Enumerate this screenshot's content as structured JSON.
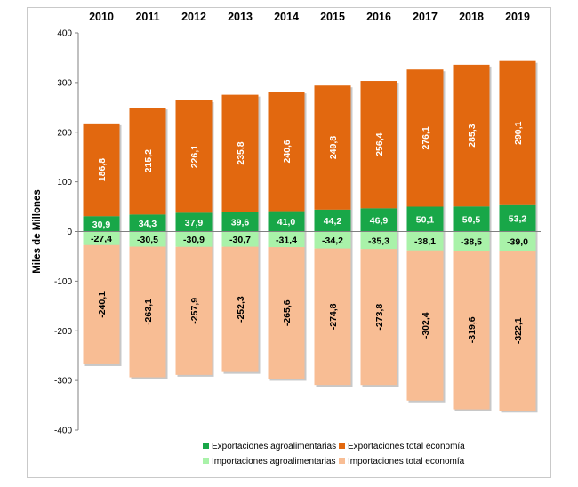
{
  "chart_data": {
    "type": "bar",
    "stacked": true,
    "categories": [
      "2010",
      "2011",
      "2012",
      "2013",
      "2014",
      "2015",
      "2016",
      "2017",
      "2018",
      "2019"
    ],
    "series": [
      {
        "name": "Exportaciones agroalimentarias",
        "color": "#18a748",
        "values": [
          30.9,
          34.3,
          37.9,
          39.6,
          41.0,
          44.2,
          46.9,
          50.1,
          50.5,
          53.2
        ],
        "labels": [
          "30,9",
          "34,3",
          "37,9",
          "39,6",
          "41,0",
          "44,2",
          "46,9",
          "50,1",
          "50,5",
          "53,2"
        ]
      },
      {
        "name": "Exportaciones total economía",
        "color": "#e2680f",
        "values": [
          186.8,
          215.2,
          226.1,
          235.8,
          240.6,
          249.8,
          256.4,
          276.1,
          285.3,
          290.1
        ],
        "labels": [
          "186,8",
          "215,2",
          "226,1",
          "235,8",
          "240,6",
          "249,8",
          "256,4",
          "276,1",
          "285,3",
          "290,1"
        ]
      },
      {
        "name": "Importaciones agroalimentarias",
        "color": "#a9f2a9",
        "values": [
          -27.4,
          -30.5,
          -30.9,
          -30.7,
          -31.4,
          -34.2,
          -35.3,
          -38.1,
          -38.5,
          -39.0
        ],
        "labels": [
          "-27,4",
          "-30,5",
          "-30,9",
          "-30,7",
          "-31,4",
          "-34,2",
          "-35,3",
          "-38,1",
          "-38,5",
          "-39,0"
        ]
      },
      {
        "name": "Importaciones total economía",
        "color": "#f8bd94",
        "values": [
          -240.1,
          -263.1,
          -257.9,
          -252.3,
          -265.6,
          -274.8,
          -273.8,
          -302.4,
          -319.6,
          -322.1
        ],
        "labels": [
          "-240,1",
          "-263,1",
          "-257,9",
          "-252,3",
          "-265,6",
          "-274,8",
          "-273,8",
          "-302,4",
          "-319,6",
          "-322,1"
        ]
      }
    ],
    "ylabel": "Miles de Millones",
    "ylim": [
      -400,
      400
    ],
    "yticks": [
      400,
      300,
      200,
      100,
      0,
      -100,
      -200,
      -300,
      -400
    ],
    "category_axis_position": "top",
    "legend_position": "bottom-center",
    "grid": false
  }
}
